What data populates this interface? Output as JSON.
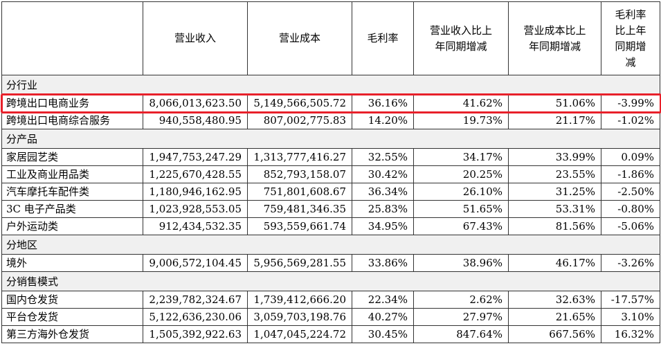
{
  "headers": [
    "",
    "营业收入",
    "营业成本",
    "毛利率",
    "营业收入比上年同期增减",
    "营业成本比上年同期增减",
    "毛利率比上年同期增减"
  ],
  "header_lines": {
    "c4": [
      "营业收入比上",
      "年同期增减"
    ],
    "c5": [
      "营业成本比上",
      "年同期增减"
    ],
    "c6": [
      "毛利率",
      "比上年",
      "同期增",
      "减"
    ]
  },
  "sections": [
    {
      "title": "分行业",
      "rows": [
        {
          "name": "跨境出口电商业务",
          "revenue": "8,066,013,623.50",
          "cost": "5,149,566,505.72",
          "margin": "36.16%",
          "rev_change": "41.62%",
          "cost_change": "51.06%",
          "margin_change": "-3.99%"
        },
        {
          "name": "跨境出口电商综合服务",
          "revenue": "940,558,480.95",
          "cost": "807,002,775.83",
          "margin": "14.20%",
          "rev_change": "19.73%",
          "cost_change": "21.17%",
          "margin_change": "-1.02%"
        }
      ]
    },
    {
      "title": "分产品",
      "rows": [
        {
          "name": "家居园艺类",
          "revenue": "1,947,753,247.29",
          "cost": "1,313,777,416.27",
          "margin": "32.55%",
          "rev_change": "34.17%",
          "cost_change": "33.99%",
          "margin_change": "0.09%"
        },
        {
          "name": "工业及商业用品类",
          "revenue": "1,225,670,428.55",
          "cost": "852,793,158.07",
          "margin": "30.42%",
          "rev_change": "20.25%",
          "cost_change": "23.55%",
          "margin_change": "-1.86%"
        },
        {
          "name": "汽车摩托车配件类",
          "revenue": "1,180,946,162.95",
          "cost": "751,801,608.67",
          "margin": "36.34%",
          "rev_change": "26.10%",
          "cost_change": "31.25%",
          "margin_change": "-2.50%"
        },
        {
          "name": "3C 电子产品类",
          "revenue": "1,023,928,553.05",
          "cost": "759,481,346.35",
          "margin": "25.83%",
          "rev_change": "51.65%",
          "cost_change": "53.31%",
          "margin_change": "-0.80%"
        },
        {
          "name": "户外运动类",
          "revenue": "912,434,532.35",
          "cost": "593,559,661.74",
          "margin": "34.95%",
          "rev_change": "67.43%",
          "cost_change": "81.56%",
          "margin_change": "-5.06%"
        }
      ]
    },
    {
      "title": "分地区",
      "rows": [
        {
          "name": "境外",
          "revenue": "9,006,572,104.45",
          "cost": "5,956,569,281.55",
          "margin": "33.86%",
          "rev_change": "38.96%",
          "cost_change": "46.17%",
          "margin_change": "-3.26%"
        }
      ]
    },
    {
      "title": "分销售模式",
      "rows": [
        {
          "name": "国内仓发货",
          "revenue": "2,239,782,324.67",
          "cost": "1,739,412,666.20",
          "margin": "22.34%",
          "rev_change": "2.62%",
          "cost_change": "32.63%",
          "margin_change": "-17.57%"
        },
        {
          "name": "平台仓发货",
          "revenue": "5,122,636,230.06",
          "cost": "3,059,703,198.76",
          "margin": "40.27%",
          "rev_change": "27.97%",
          "cost_change": "21.65%",
          "margin_change": "3.10%"
        },
        {
          "name": "第三方海外仓发货",
          "revenue": "1,505,392,922.63",
          "cost": "1,047,045,224.72",
          "margin": "30.45%",
          "rev_change": "847.64%",
          "cost_change": "667.56%",
          "margin_change": "16.32%"
        }
      ]
    }
  ],
  "colors": {
    "highlight": "#e8202a",
    "section_bg": "#f0f0f0",
    "border": "#333333"
  }
}
